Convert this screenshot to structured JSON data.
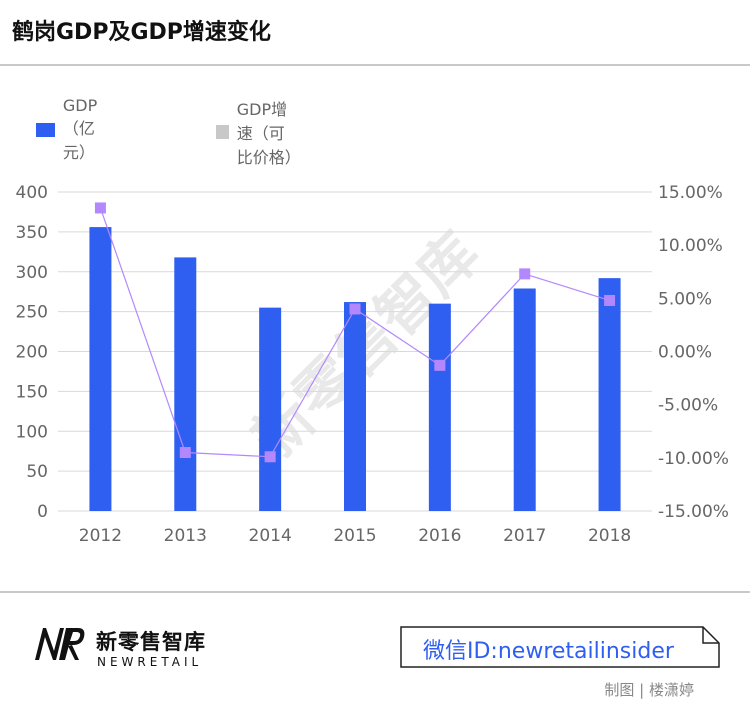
{
  "title": "鹤岗GDP及GDP增速变化",
  "colors": {
    "bar": "#2f5ff0",
    "line": "#b388ff",
    "rule": "#c8c8c8",
    "watermark": "#e9e9e9",
    "brand_blue": "#2f5ff0"
  },
  "legend": [
    {
      "label": "GDP（亿元）",
      "color": "#2f5ff0"
    },
    {
      "label": "GDP增速（可比价格）",
      "color": "#c8c8c8"
    }
  ],
  "watermark": "新零售智库",
  "chart_data": {
    "type": "bar",
    "categories": [
      "2012",
      "2013",
      "2014",
      "2015",
      "2016",
      "2017",
      "2018"
    ],
    "series": [
      {
        "name": "GDP（亿元）",
        "type": "bar",
        "axis": "left",
        "values": [
          356,
          318,
          255,
          262,
          260,
          279,
          292
        ]
      },
      {
        "name": "GDP增速（可比价格）",
        "type": "line",
        "axis": "right",
        "values": [
          13.5,
          -9.5,
          -9.9,
          4.0,
          -1.3,
          7.3,
          4.8
        ]
      }
    ],
    "ylim": [
      0,
      400
    ],
    "yticks": [
      "0",
      "50",
      "100",
      "150",
      "200",
      "250",
      "300",
      "350",
      "400"
    ],
    "ylim_right": [
      -15,
      15
    ],
    "yticks_right": [
      "-15.00%",
      "-10.00%",
      "-5.00%",
      "0.00%",
      "5.00%",
      "10.00%",
      "15.00%"
    ],
    "grid": true
  },
  "footer": {
    "brand_cn": "新零售智库",
    "brand_en": "NEWRETAIL",
    "wechat_label": "微信ID:newretailinsider",
    "credit": "制图 | 楼潇婷"
  }
}
